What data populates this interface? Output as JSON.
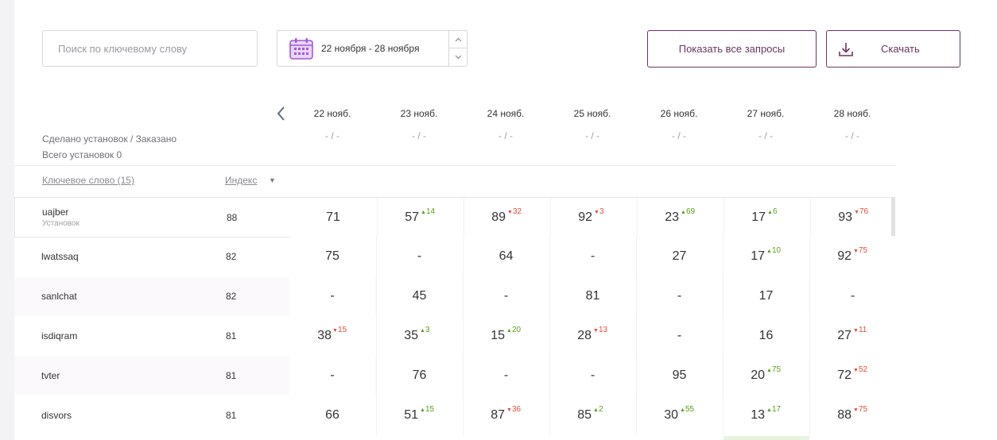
{
  "toolbar": {
    "search_placeholder": "Поиск по ключевому слову",
    "date_range": "22 ноября - 28 ноября",
    "show_all_label": "Показать все запросы",
    "download_label": "Скачать"
  },
  "header": {
    "stats_line1": "Сделано установок / Заказано",
    "stats_line2": "Всего установок 0",
    "keyword_col": "Ключевое слово (15)",
    "index_col": "Индекс",
    "dates": [
      {
        "label": "22 нояб.",
        "value": "- / -"
      },
      {
        "label": "23 нояб.",
        "value": "- / -"
      },
      {
        "label": "24 нояб.",
        "value": "- / -"
      },
      {
        "label": "25 нояб.",
        "value": "- / -"
      },
      {
        "label": "26 нояб.",
        "value": "- / -"
      },
      {
        "label": "27 нояб.",
        "value": "- / -"
      },
      {
        "label": "28 нояб.",
        "value": "- / -"
      }
    ]
  },
  "rows": [
    {
      "keyword": "uajber",
      "sub": "Установок",
      "index": "88",
      "cells": [
        {
          "v": "71"
        },
        {
          "v": "57",
          "d": "14",
          "dir": "up"
        },
        {
          "v": "89",
          "d": "32",
          "dir": "down"
        },
        {
          "v": "92",
          "d": "3",
          "dir": "down"
        },
        {
          "v": "23",
          "d": "69",
          "dir": "up"
        },
        {
          "v": "17",
          "d": "6",
          "dir": "up"
        },
        {
          "v": "93",
          "d": "76",
          "dir": "down"
        }
      ]
    },
    {
      "keyword": "lwatssaq",
      "index": "82",
      "cells": [
        {
          "v": "75"
        },
        {
          "v": "-"
        },
        {
          "v": "64"
        },
        {
          "v": "-"
        },
        {
          "v": "27"
        },
        {
          "v": "17",
          "d": "10",
          "dir": "up"
        },
        {
          "v": "92",
          "d": "75",
          "dir": "down"
        }
      ]
    },
    {
      "keyword": "sanlchat",
      "index": "82",
      "cells": [
        {
          "v": "-"
        },
        {
          "v": "45"
        },
        {
          "v": "-"
        },
        {
          "v": "81"
        },
        {
          "v": "-"
        },
        {
          "v": "17"
        },
        {
          "v": "-"
        }
      ]
    },
    {
      "keyword": "isdiqram",
      "index": "81",
      "cells": [
        {
          "v": "38",
          "d": "15",
          "dir": "down"
        },
        {
          "v": "35",
          "d": "3",
          "dir": "up"
        },
        {
          "v": "15",
          "d": "20",
          "dir": "up"
        },
        {
          "v": "28",
          "d": "13",
          "dir": "down"
        },
        {
          "v": "-"
        },
        {
          "v": "16"
        },
        {
          "v": "27",
          "d": "11",
          "dir": "down"
        }
      ]
    },
    {
      "keyword": "tvter",
      "index": "81",
      "cells": [
        {
          "v": "-"
        },
        {
          "v": "76"
        },
        {
          "v": "-"
        },
        {
          "v": "-"
        },
        {
          "v": "95"
        },
        {
          "v": "20",
          "d": "75",
          "dir": "up"
        },
        {
          "v": "72",
          "d": "52",
          "dir": "down"
        }
      ]
    },
    {
      "keyword": "disvors",
      "index": "81",
      "cells": [
        {
          "v": "66"
        },
        {
          "v": "51",
          "d": "15",
          "dir": "up"
        },
        {
          "v": "87",
          "d": "36",
          "dir": "down"
        },
        {
          "v": "85",
          "d": "2",
          "dir": "up"
        },
        {
          "v": "30",
          "d": "55",
          "dir": "up"
        },
        {
          "v": "13",
          "d": "17",
          "dir": "up"
        },
        {
          "v": "88",
          "d": "75",
          "dir": "down"
        }
      ]
    }
  ],
  "colors": {
    "accent": "#6b3461",
    "up": "#5a9e1e",
    "down": "#e04e3a",
    "calendar": "#a259d9"
  },
  "icons": {
    "calendar": "calendar-icon",
    "download": "download-icon",
    "prev": "chevron-left-icon",
    "sort": "sort-down-icon"
  }
}
